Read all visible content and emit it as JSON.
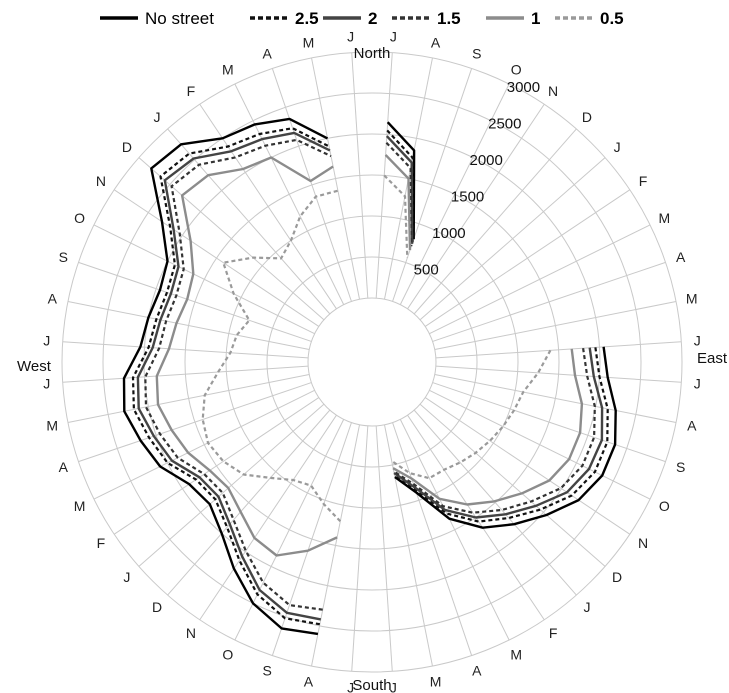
{
  "chart_data": {
    "type": "line",
    "subtype": "radar",
    "legend_position": "top",
    "grid": true,
    "radial_range": [
      0,
      3000
    ],
    "radial_ticks": [
      "500",
      "1000",
      "1500",
      "2000",
      "2500",
      "3000"
    ],
    "directions": {
      "north": "North",
      "east": "East",
      "south": "South",
      "west": "West"
    },
    "categories": [
      "J",
      "A",
      "S",
      "O",
      "N",
      "D",
      "J",
      "F",
      "M",
      "A",
      "M",
      "J",
      "J",
      "A",
      "S",
      "O",
      "N",
      "D",
      "J",
      "F",
      "M",
      "A",
      "M",
      "J",
      "J",
      "A",
      "S",
      "O",
      "N",
      "D",
      "J",
      "F",
      "M",
      "A",
      "M",
      "J",
      "J",
      "A",
      "S",
      "O",
      "N",
      "D",
      "J",
      "F",
      "M",
      "A",
      "M",
      "J"
    ],
    "series": [
      {
        "name": "No street",
        "color": "#000000",
        "dash": "solid",
        "values": [
          2150,
          1850,
          800,
          null,
          null,
          null,
          null,
          null,
          null,
          null,
          null,
          2050,
          2100,
          2250,
          2350,
          2350,
          2250,
          2050,
          1850,
          1650,
          1350,
          900,
          650,
          null,
          null,
          2600,
          2650,
          2500,
          2250,
          2000,
          1850,
          1900,
          2100,
          2200,
          2300,
          2250,
          2050,
          2000,
          1950,
          2000,
          2300,
          2800,
          2750,
          2500,
          2450,
          2350,
          2000,
          null
        ]
      },
      {
        "name": "2.5",
        "color": "#111111",
        "dash": "dash",
        "values": [
          2050,
          1760,
          760,
          null,
          null,
          null,
          null,
          null,
          null,
          null,
          null,
          1950,
          2000,
          2150,
          2250,
          2250,
          2150,
          1950,
          1750,
          1560,
          1280,
          860,
          620,
          null,
          null,
          2480,
          2520,
          2380,
          2130,
          1900,
          1760,
          1800,
          2000,
          2090,
          2180,
          2140,
          1950,
          1900,
          1860,
          1900,
          2180,
          2650,
          2600,
          2380,
          2320,
          2230,
          1900,
          null
        ]
      },
      {
        "name": "2",
        "color": "#444444",
        "dash": "solid",
        "values": [
          1980,
          1700,
          740,
          null,
          null,
          null,
          null,
          null,
          null,
          null,
          null,
          1880,
          1930,
          2080,
          2180,
          2170,
          2080,
          1880,
          1690,
          1500,
          1230,
          830,
          600,
          null,
          null,
          2420,
          2450,
          2320,
          2070,
          1850,
          1710,
          1750,
          1940,
          2030,
          2120,
          2080,
          1900,
          1850,
          1810,
          1850,
          2130,
          2580,
          2520,
          2310,
          2250,
          2170,
          1850,
          null
        ]
      },
      {
        "name": "1.5",
        "color": "#333333",
        "dash": "dash",
        "values": [
          1900,
          1630,
          710,
          null,
          null,
          null,
          null,
          null,
          null,
          null,
          null,
          1800,
          1850,
          1990,
          2080,
          2080,
          1990,
          1800,
          1620,
          1430,
          1180,
          790,
          580,
          null,
          null,
          2300,
          2350,
          2220,
          1990,
          1780,
          1640,
          1680,
          1860,
          1950,
          2030,
          1990,
          1820,
          1780,
          1740,
          1780,
          2040,
          2470,
          2420,
          2220,
          2160,
          2080,
          1780,
          null
        ]
      },
      {
        "name": "1",
        "color": "#8c8c8c",
        "dash": "solid",
        "values": [
          1750,
          1500,
          660,
          null,
          null,
          null,
          null,
          null,
          null,
          null,
          null,
          1660,
          1700,
          1830,
          1900,
          1900,
          1820,
          1650,
          1480,
          1310,
          1080,
          720,
          540,
          null,
          null,
          1400,
          1650,
          1850,
          1800,
          1650,
          1550,
          1600,
          1720,
          1800,
          1880,
          1850,
          1700,
          1650,
          1600,
          1650,
          1880,
          2300,
          2250,
          2050,
          2000,
          1550,
          1650,
          null
        ]
      },
      {
        "name": "0.5",
        "color": "#9a9a9a",
        "dash": "dash",
        "values": [
          1500,
          1280,
          560,
          null,
          null,
          null,
          null,
          null,
          null,
          null,
          null,
          1400,
          1250,
          1100,
          1050,
          1000,
          950,
          900,
          850,
          800,
          800,
          650,
          450,
          null,
          null,
          1200,
          1050,
          900,
          950,
          1100,
          1300,
          1400,
          1450,
          1400,
          1300,
          1100,
          950,
          900,
          800,
          1100,
          1400,
          1150,
          900,
          1000,
          1200,
          1350,
          1350,
          null
        ]
      }
    ]
  }
}
